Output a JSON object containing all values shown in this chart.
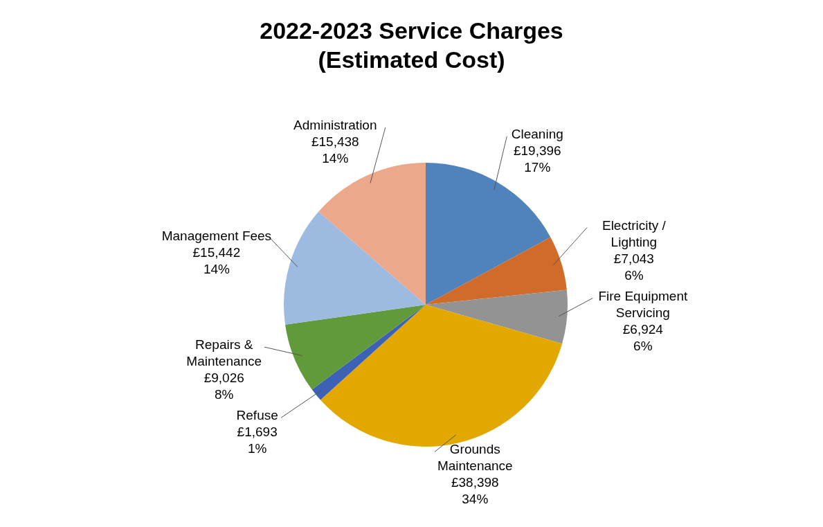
{
  "chart_data": {
    "type": "pie",
    "title": "2022-2023 Service Charges\n(Estimated Cost)",
    "categories": [
      "Cleaning",
      "Electricity / Lighting",
      "Fire Equipment Servicing",
      "Grounds Maintenance",
      "Refuse",
      "Repairs & Maintenance",
      "Management Fees",
      "Administration"
    ],
    "values": [
      19396,
      7043,
      6924,
      38398,
      1693,
      9026,
      15442,
      15438
    ],
    "value_labels": [
      "£19,396\n17%",
      "£7,043\n6%",
      "£6,924\n6%",
      "£38,398\n34%",
      "£1,693\n1%",
      "£9,026\n8%",
      "£15,442\n14%",
      "£15,438\n14%"
    ],
    "colors": [
      "#5083bb",
      "#d06b2a",
      "#939393",
      "#e2a800",
      "#3d62b5",
      "#619a3a",
      "#9dbbe0",
      "#eba88a"
    ],
    "legend": false
  }
}
